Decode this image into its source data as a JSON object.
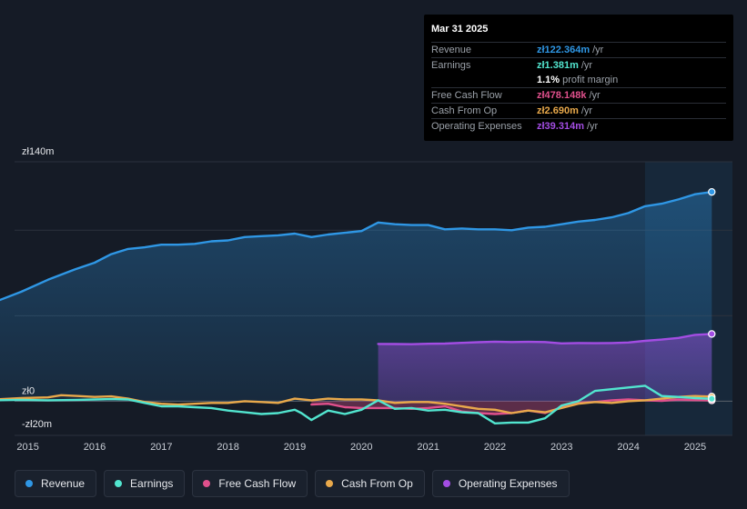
{
  "colors": {
    "revenue": "#2f97e5",
    "earnings": "#52e5cf",
    "free_cash_flow": "#e0508c",
    "cash_from_op": "#e9a94b",
    "operating_expenses": "#a34de3"
  },
  "tooltip": {
    "date": "Mar 31 2025",
    "rows": [
      {
        "label": "Revenue",
        "value": "zł122.364m",
        "unit": "/yr",
        "color_key": "revenue"
      },
      {
        "label": "Earnings",
        "value": "zł1.381m",
        "unit": "/yr",
        "color_key": "earnings"
      },
      {
        "label": "",
        "value": "1.1%",
        "unit": "profit margin",
        "color_key": ""
      },
      {
        "label": "Free Cash Flow",
        "value": "zł478.148k",
        "unit": "/yr",
        "color_key": "free_cash_flow"
      },
      {
        "label": "Cash From Op",
        "value": "zł2.690m",
        "unit": "/yr",
        "color_key": "cash_from_op"
      },
      {
        "label": "Operating Expenses",
        "value": "zł39.314m",
        "unit": "/yr",
        "color_key": "operating_expenses"
      }
    ]
  },
  "legend": [
    {
      "label": "Revenue",
      "color_key": "revenue"
    },
    {
      "label": "Earnings",
      "color_key": "earnings"
    },
    {
      "label": "Free Cash Flow",
      "color_key": "free_cash_flow"
    },
    {
      "label": "Cash From Op",
      "color_key": "cash_from_op"
    },
    {
      "label": "Operating Expenses",
      "color_key": "operating_expenses"
    }
  ],
  "chart_data": {
    "type": "area",
    "title": "",
    "xlabel": "",
    "ylabel": "",
    "ylim": [
      -20,
      140
    ],
    "xlim": [
      2014.8,
      2025.56
    ],
    "y_tick_labels": [
      {
        "value": 140,
        "label": "zł140m"
      },
      {
        "value": 0,
        "label": "zł0"
      },
      {
        "value": -20,
        "label": "-zł20m"
      }
    ],
    "gridlines": [
      140,
      100,
      50,
      0,
      -20
    ],
    "x_ticks": [
      {
        "value": 2015,
        "label": "2015"
      },
      {
        "value": 2016,
        "label": "2016"
      },
      {
        "value": 2017,
        "label": "2017"
      },
      {
        "value": 2018,
        "label": "2018"
      },
      {
        "value": 2019,
        "label": "2019"
      },
      {
        "value": 2020,
        "label": "2020"
      },
      {
        "value": 2021,
        "label": "2021"
      },
      {
        "value": 2022,
        "label": "2022"
      },
      {
        "value": 2023,
        "label": "2023"
      },
      {
        "value": 2024,
        "label": "2024"
      },
      {
        "value": 2025,
        "label": "2025"
      }
    ],
    "highlight_start": 2024.25,
    "series": [
      {
        "name": "Revenue",
        "key": "revenue",
        "fill": true,
        "x": [
          2014.5,
          2014.9,
          2015.3,
          2015.7,
          2016.0,
          2016.25,
          2016.5,
          2016.75,
          2017.0,
          2017.25,
          2017.5,
          2017.75,
          2018.0,
          2018.25,
          2018.5,
          2018.75,
          2019.0,
          2019.25,
          2019.5,
          2019.75,
          2020.0,
          2020.25,
          2020.5,
          2020.75,
          2021.0,
          2021.25,
          2021.5,
          2021.75,
          2022.0,
          2022.25,
          2022.5,
          2022.75,
          2023.0,
          2023.25,
          2023.5,
          2023.75,
          2024.0,
          2024.25,
          2024.5,
          2024.75,
          2025.0,
          2025.25
        ],
        "values": [
          58,
          64,
          71,
          77,
          81,
          86,
          89,
          90,
          91.5,
          91.5,
          92,
          93.5,
          94,
          96,
          96.5,
          97,
          98,
          96,
          97.5,
          98.5,
          99.5,
          104.5,
          103.5,
          103,
          103,
          100.5,
          101,
          100.5,
          100.5,
          100,
          101.5,
          102,
          103.5,
          105,
          106,
          107.5,
          110,
          114,
          115.5,
          118,
          121,
          122.364
        ]
      },
      {
        "name": "Operating Expenses",
        "key": "operating_expenses",
        "fill": true,
        "x": [
          2020.25,
          2020.5,
          2020.75,
          2021.0,
          2021.25,
          2021.5,
          2021.75,
          2022.0,
          2022.25,
          2022.5,
          2022.75,
          2023.0,
          2023.25,
          2023.5,
          2023.75,
          2024.0,
          2024.25,
          2024.5,
          2024.75,
          2025.0,
          2025.25
        ],
        "values": [
          33.5,
          33.4,
          33.3,
          33.6,
          33.7,
          34.1,
          34.5,
          34.8,
          34.6,
          34.7,
          34.6,
          33.8,
          34.0,
          33.9,
          34.0,
          34.3,
          35.3,
          36.0,
          37.0,
          38.8,
          39.314
        ]
      },
      {
        "name": "Free Cash Flow",
        "key": "free_cash_flow",
        "fill": true,
        "x": [
          2019.25,
          2019.5,
          2019.75,
          2020.0,
          2020.25,
          2020.5,
          2020.75,
          2021.0,
          2021.25,
          2021.5,
          2021.75,
          2022.0,
          2022.25,
          2022.5,
          2022.75,
          2023.0,
          2023.25,
          2023.5,
          2023.75,
          2024.0,
          2024.25,
          2024.5,
          2024.75,
          2025.0,
          2025.25
        ],
        "values": [
          -2.0,
          -1.5,
          -3.5,
          -4.0,
          -4.0,
          -4.0,
          -4.5,
          -4.0,
          -3.0,
          -6.0,
          -7.0,
          -7.5,
          -7.0,
          -5.5,
          -7.0,
          -3.5,
          -1.0,
          -0.5,
          0.5,
          1.0,
          0.5,
          0.2,
          1.0,
          0.6,
          0.478
        ]
      },
      {
        "name": "Cash From Op",
        "key": "cash_from_op",
        "fill": false,
        "x": [
          2014.5,
          2014.9,
          2015.3,
          2015.5,
          2015.75,
          2016.0,
          2016.25,
          2016.5,
          2016.75,
          2017.0,
          2017.25,
          2017.5,
          2017.75,
          2018.0,
          2018.25,
          2018.5,
          2018.75,
          2019.0,
          2019.25,
          2019.5,
          2019.75,
          2020.0,
          2020.25,
          2020.5,
          2020.75,
          2021.0,
          2021.25,
          2021.5,
          2021.75,
          2022.0,
          2022.25,
          2022.5,
          2022.75,
          2023.0,
          2023.25,
          2023.5,
          2023.75,
          2024.0,
          2024.25,
          2024.5,
          2024.75,
          2025.0,
          2025.25
        ],
        "values": [
          1.0,
          1.8,
          2.2,
          3.5,
          3.0,
          2.5,
          2.8,
          1.5,
          -0.5,
          -1.5,
          -2.0,
          -1.5,
          -1.0,
          -1.0,
          0.0,
          -0.5,
          -1.0,
          1.5,
          0.5,
          1.5,
          1.0,
          1.0,
          0.5,
          -1.0,
          -0.5,
          -0.5,
          -1.5,
          -3.0,
          -4.5,
          -5.0,
          -7.0,
          -5.5,
          -6.5,
          -4.0,
          -1.5,
          -0.5,
          -1.0,
          0.0,
          0.5,
          1.5,
          2.5,
          3.0,
          2.69
        ]
      },
      {
        "name": "Earnings",
        "key": "earnings",
        "fill": false,
        "x": [
          2014.5,
          2014.9,
          2015.3,
          2015.75,
          2016.0,
          2016.25,
          2016.5,
          2016.75,
          2017.0,
          2017.25,
          2017.5,
          2017.75,
          2018.0,
          2018.25,
          2018.5,
          2018.75,
          2019.0,
          2019.1,
          2019.25,
          2019.5,
          2019.75,
          2020.0,
          2020.25,
          2020.5,
          2020.75,
          2021.0,
          2021.25,
          2021.5,
          2021.75,
          2022.0,
          2022.25,
          2022.5,
          2022.75,
          2023.0,
          2023.25,
          2023.5,
          2023.75,
          2024.0,
          2024.25,
          2024.5,
          2024.75,
          2025.0,
          2025.25
        ],
        "values": [
          0.5,
          0.8,
          0.5,
          0.8,
          1.0,
          1.2,
          1.0,
          -1.0,
          -3.0,
          -3.0,
          -3.5,
          -4.0,
          -5.5,
          -6.5,
          -7.5,
          -7.0,
          -5.0,
          -7.0,
          -11.0,
          -5.5,
          -7.5,
          -5.0,
          0.5,
          -4.5,
          -4.0,
          -5.5,
          -5.0,
          -6.5,
          -7.0,
          -13.0,
          -12.5,
          -12.5,
          -10.0,
          -2.5,
          0.0,
          6.0,
          7.0,
          8.0,
          9.0,
          3.0,
          2.5,
          1.8,
          1.381
        ]
      }
    ]
  }
}
